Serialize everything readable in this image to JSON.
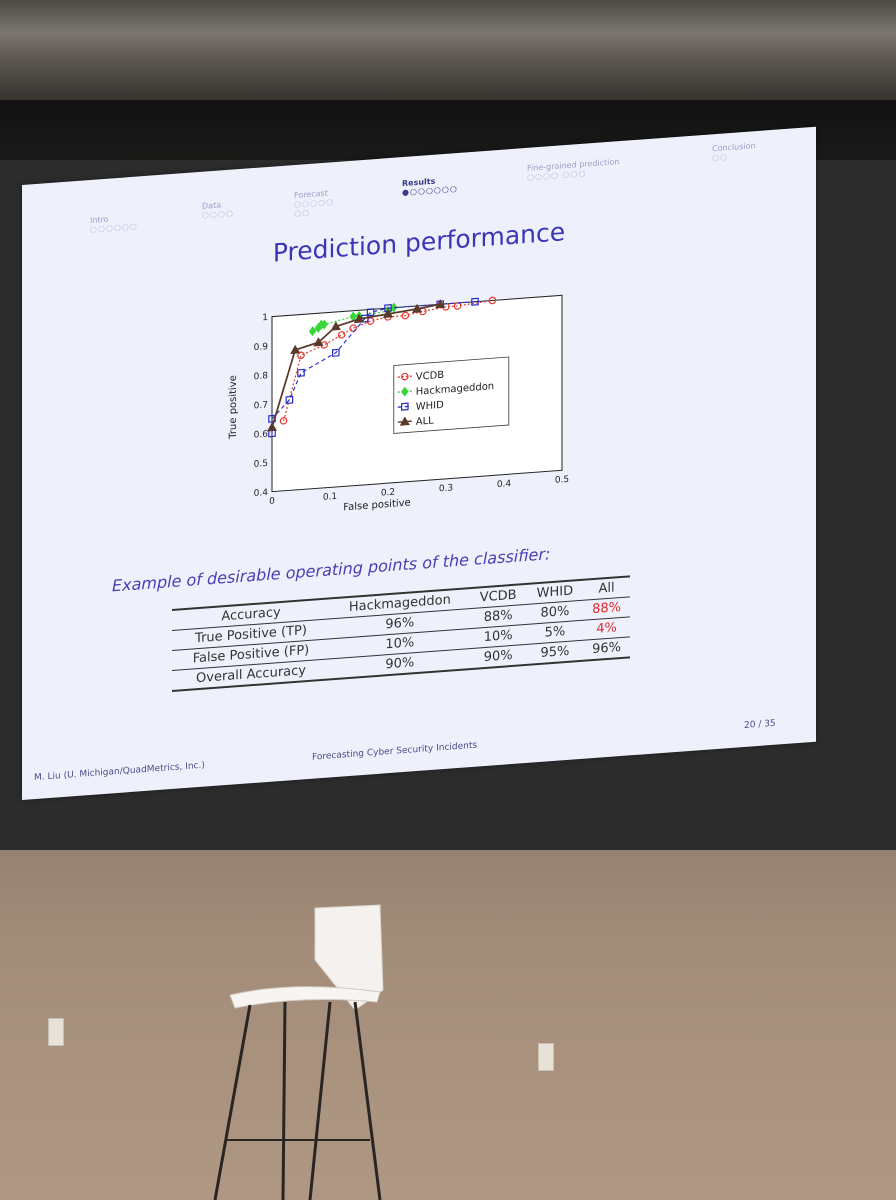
{
  "slide": {
    "nav": [
      {
        "label": "Intro",
        "dots": "○○○○○○"
      },
      {
        "label": "Data",
        "dots": "○○○○"
      },
      {
        "label": "Forecast",
        "dots": "○○○○○ ○○"
      },
      {
        "label": "Results",
        "dots": "●○○○○○○"
      },
      {
        "label": "Fine-grained prediction",
        "dots": "○○○○ ○○○"
      },
      {
        "label": "Conclusion",
        "dots": "○○"
      }
    ],
    "title": "Prediction performance",
    "subtitle": "Example of desirable operating points of the classifier:",
    "table": {
      "headers": [
        "Accuracy",
        "Hackmageddon",
        "VCDB",
        "WHID",
        "All"
      ],
      "rows": [
        [
          "True Positive (TP)",
          "96%",
          "88%",
          "80%",
          "88%"
        ],
        [
          "False Positive (FP)",
          "10%",
          "10%",
          "5%",
          "4%"
        ],
        [
          "Overall Accuracy",
          "90%",
          "90%",
          "95%",
          "96%"
        ]
      ]
    },
    "footer": {
      "author": "M. Liu (U. Michigan/QuadMetrics, Inc.)",
      "talk": "Forecasting Cyber Security Incidents",
      "page": "20 / 35"
    }
  },
  "chart_data": {
    "type": "line",
    "xlabel": "False positive",
    "ylabel": "True positive",
    "xlim": [
      0,
      0.5
    ],
    "ylim": [
      0.4,
      1
    ],
    "xticks": [
      "0",
      "0.1",
      "0.2",
      "0.3",
      "0.4",
      "0.5"
    ],
    "yticks": [
      "0.4",
      "0.5",
      "0.6",
      "0.7",
      "0.8",
      "0.9",
      "1"
    ],
    "legend_position": "lower-right",
    "series": [
      {
        "name": "VCDB",
        "color": "#e8382e",
        "marker": "circle",
        "dash": "dotted",
        "x": [
          0.02,
          0.05,
          0.09,
          0.12,
          0.14,
          0.17,
          0.2,
          0.23,
          0.26,
          0.3,
          0.32,
          0.38
        ],
        "y": [
          0.64,
          0.86,
          0.89,
          0.92,
          0.94,
          0.96,
          0.97,
          0.97,
          0.98,
          0.99,
          0.99,
          1.0
        ]
      },
      {
        "name": "Hackmageddon",
        "color": "#38d838",
        "marker": "diamond",
        "dash": "dotted",
        "x": [
          0.07,
          0.08,
          0.085,
          0.09,
          0.14,
          0.15,
          0.2,
          0.21
        ],
        "y": [
          0.94,
          0.95,
          0.96,
          0.96,
          0.98,
          0.98,
          0.99,
          1.0
        ]
      },
      {
        "name": "WHID",
        "color": "#2c2ccc",
        "marker": "square",
        "dash": "dashed",
        "x": [
          0.0,
          0.0,
          0.03,
          0.05,
          0.11,
          0.16,
          0.17,
          0.2,
          0.29,
          0.35
        ],
        "y": [
          0.6,
          0.65,
          0.71,
          0.8,
          0.86,
          0.97,
          0.99,
          1.0,
          1.0,
          1.0
        ]
      },
      {
        "name": "ALL",
        "color": "#5a3a2a",
        "marker": "triangle",
        "dash": "solid",
        "x": [
          0.0,
          0.04,
          0.08,
          0.11,
          0.15,
          0.2,
          0.25,
          0.29
        ],
        "y": [
          0.62,
          0.88,
          0.9,
          0.95,
          0.97,
          0.98,
          0.99,
          1.0
        ]
      }
    ]
  }
}
